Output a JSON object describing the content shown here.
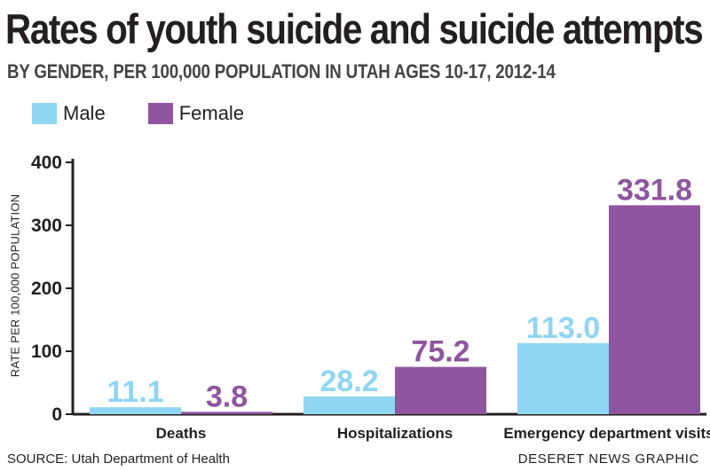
{
  "header": {
    "title": "Rates of youth suicide and suicide attempts",
    "subtitle": "BY GENDER, PER 100,000 POPULATION IN UTAH AGES 10-17, 2012-14"
  },
  "legend": [
    {
      "label": "Male",
      "color": "#8fd6f2"
    },
    {
      "label": "Female",
      "color": "#8f55a0"
    }
  ],
  "chart_data": {
    "type": "bar",
    "categories": [
      "Deaths",
      "Hospitalizations",
      "Emergency department visits"
    ],
    "series": [
      {
        "name": "Male",
        "values": [
          11.1,
          28.2,
          113.0
        ],
        "labels": [
          "11.1",
          "28.2",
          "113.0"
        ],
        "color": "#8fd6f2"
      },
      {
        "name": "Female",
        "values": [
          3.8,
          75.2,
          331.8
        ],
        "labels": [
          "3.8",
          "75.2",
          "331.8"
        ],
        "color": "#8f55a0"
      }
    ],
    "ylabel": "RATE PER 100,000 POPULATION",
    "ylim": [
      0,
      400
    ],
    "yticks": [
      0,
      100,
      200,
      300,
      400
    ],
    "grid": false,
    "legend_position": "top-left"
  },
  "footer": {
    "source": "SOURCE: Utah Department of Health",
    "credit": "DESERET NEWS GRAPHIC"
  }
}
